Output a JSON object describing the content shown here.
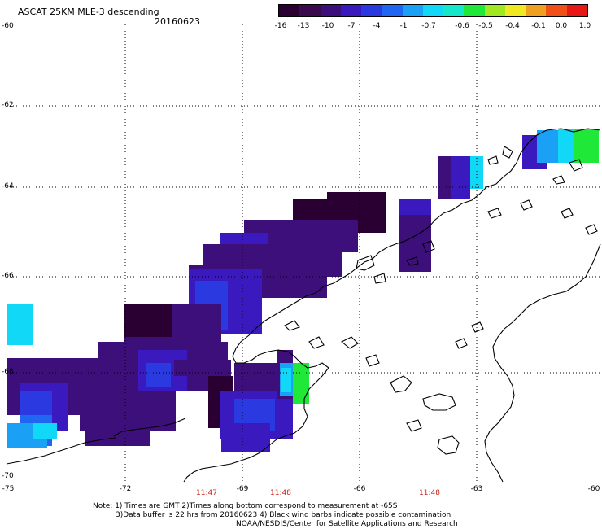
{
  "header": {
    "title": "ASCAT 25KM MLE-3 descending",
    "date": "20160623"
  },
  "colorbar": {
    "labels": [
      "-16",
      "-13",
      "-10",
      "-7",
      "-4",
      "-1",
      "-0.7",
      "-0.6",
      "-0.5",
      "-0.4",
      "-0.1",
      "0.0",
      "1.0"
    ],
    "colors": [
      "#2a0033",
      "#3a0a4d",
      "#3d0f7a",
      "#3a1abf",
      "#2a3ae0",
      "#1f66f0",
      "#1aa0f5",
      "#12d8f8",
      "#14e8c8",
      "#20e838",
      "#a0e820",
      "#f0e820",
      "#f0a020",
      "#f05018",
      "#e81818"
    ]
  },
  "axes": {
    "lat_labels": [
      "-60",
      "-62",
      "-64",
      "-66",
      "-68",
      "-70"
    ],
    "lon_labels": [
      "-75",
      "-72",
      "-69",
      "-66",
      "-63",
      "-60"
    ]
  },
  "time_labels": [
    "11:47",
    "11:48",
    "11:48"
  ],
  "notes": {
    "line1": "Note: 1) Times are GMT 2)Times along bottom correspond to measurement at -65S",
    "line2": "3)Data buffer is 22 hrs from 20160623 4) Black wind barbs indicate possible contamination",
    "line3": "NOAA/NESDIS/Center for Satellite Applications and Research"
  }
}
